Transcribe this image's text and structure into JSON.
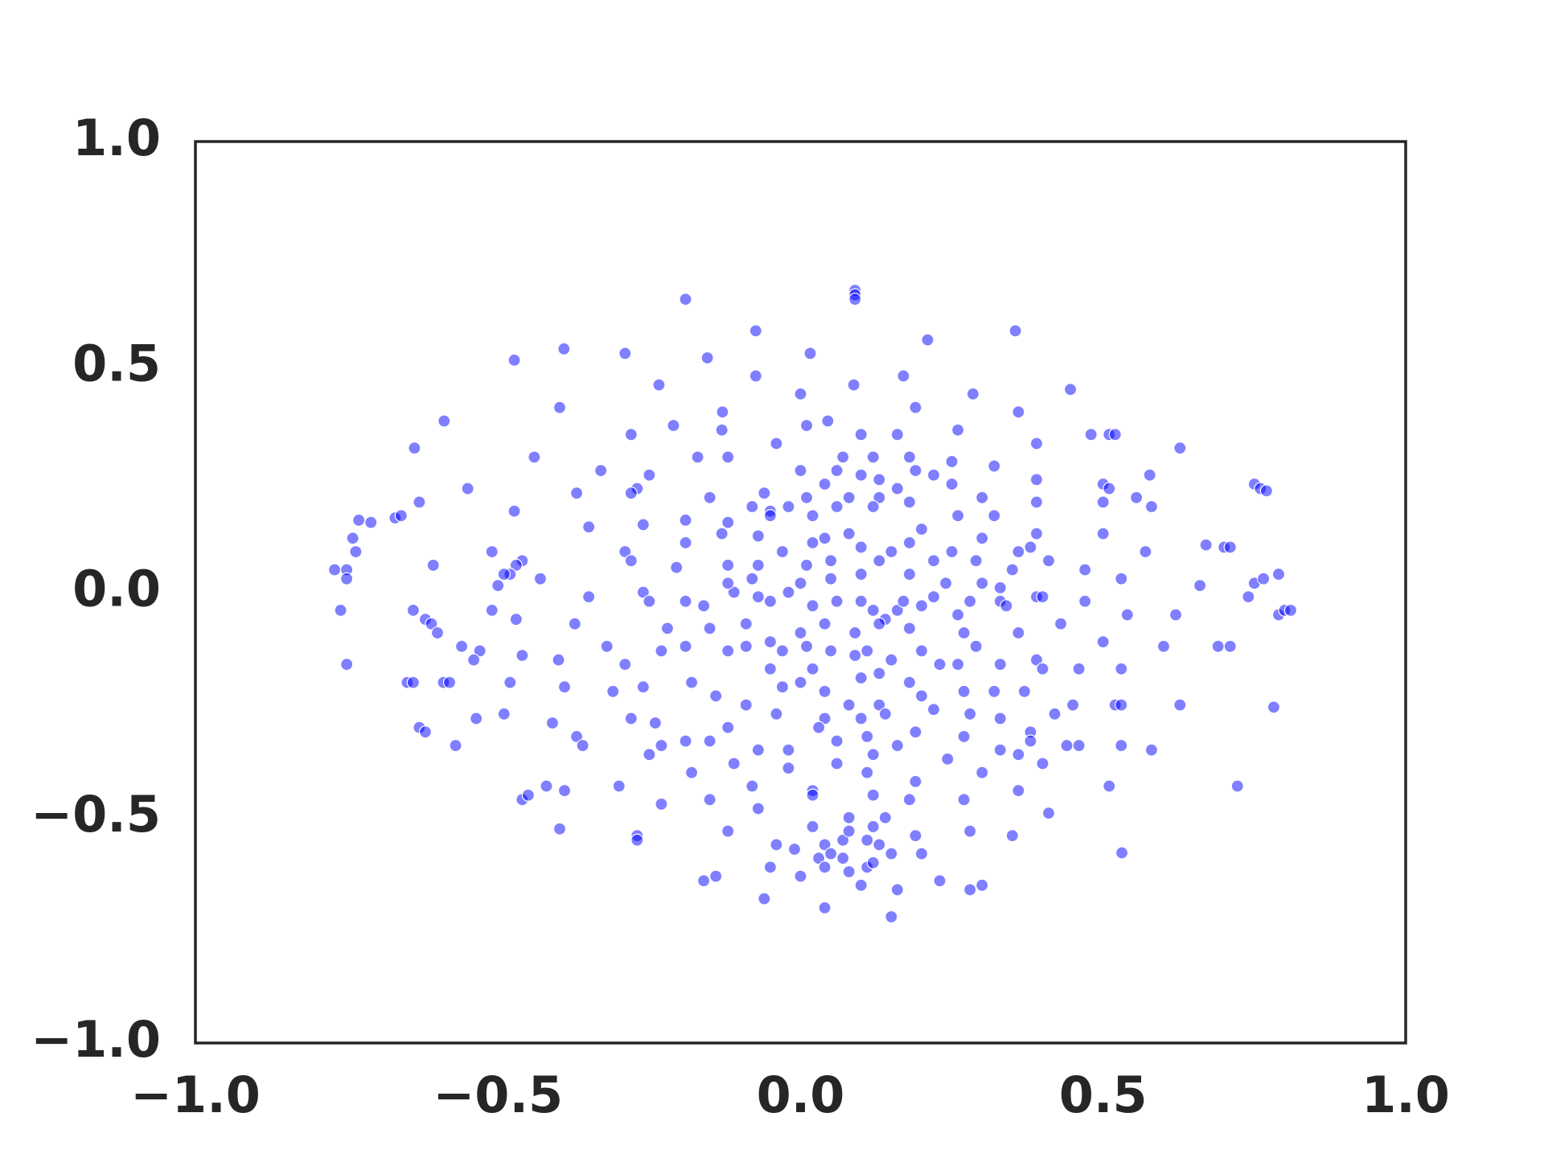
{
  "chart_data": {
    "type": "scatter",
    "x": [
      -0.19,
      0.09,
      0.09,
      0.09,
      0.355,
      0.21,
      0.016,
      -0.391,
      -0.473,
      -0.234,
      0.088,
      -0.398,
      -0.589,
      -0.129,
      -0.638,
      -0.44,
      0.26,
      0.627,
      0.577,
      -0.473,
      -0.607,
      -0.205,
      -0.373,
      -0.536,
      0.243,
      0.627,
      0.782,
      0.722,
      0.531,
      -0.398,
      0.75,
      0.39,
      -0.09,
      0.13,
      -0.074,
      -0.154,
      -0.29,
      -0.074,
      0.17,
      0.446,
      0.285,
      0.0,
      0.19,
      0.36,
      -0.21,
      -0.13,
      -0.28,
      -0.04,
      0.01,
      0.045,
      0.1,
      0.16,
      0.39,
      0.48,
      0.51,
      0.52,
      -0.12,
      -0.17,
      0.07,
      0.12,
      0.18,
      -0.33,
      -0.25,
      -0.27,
      -0.28,
      -0.55,
      -0.37,
      -0.15,
      0.0,
      0.06,
      0.1,
      0.13,
      0.16,
      0.19,
      0.22,
      0.25,
      0.32,
      0.39,
      0.5,
      0.51,
      0.555,
      0.75,
      0.76,
      0.77,
      -0.06,
      0.04,
      0.01,
      0.08,
      0.13,
      0.25,
      0.3,
      0.39,
      0.5,
      -0.73,
      -0.71,
      -0.67,
      -0.66,
      -0.63,
      -0.74,
      -0.35,
      -0.26,
      -0.19,
      -0.12,
      -0.08,
      -0.05,
      -0.05,
      -0.02,
      0.02,
      0.06,
      0.12,
      0.18,
      0.2,
      0.26,
      0.32,
      0.58,
      -0.07,
      0.02,
      0.08,
      0.04,
      0.1,
      0.3,
      0.5,
      0.67,
      0.7,
      0.71,
      -0.735,
      -0.77,
      -0.75,
      -0.75,
      -0.51,
      -0.46,
      -0.47,
      -0.48,
      -0.49,
      -0.43,
      -0.5,
      -0.29,
      -0.28,
      -0.19,
      -0.13,
      -0.12,
      -0.07,
      -0.03,
      0.01,
      0.05,
      0.13,
      0.15,
      0.18,
      0.22,
      0.25,
      0.29,
      0.35,
      0.36,
      0.38,
      0.41,
      0.47,
      0.57,
      -0.08,
      0.0,
      0.05,
      0.1,
      0.18,
      0.24,
      0.3,
      0.33,
      0.53,
      0.66,
      0.765,
      0.79,
      -0.76,
      -0.64,
      -0.62,
      -0.61,
      -0.6,
      -0.56,
      -0.51,
      -0.47,
      -0.35,
      -0.26,
      -0.25,
      -0.22,
      -0.19,
      -0.16,
      -0.15,
      -0.11,
      -0.12,
      -0.07,
      -0.05,
      -0.02,
      0.02,
      0.06,
      0.1,
      0.12,
      0.14,
      0.16,
      0.17,
      0.2,
      0.22,
      0.28,
      0.33,
      0.34,
      0.39,
      0.4,
      0.47,
      0.54,
      0.62,
      0.74,
      0.79,
      0.8,
      0.81,
      0.0,
      0.04,
      0.09,
      0.13,
      0.18,
      0.26,
      0.27,
      0.36,
      0.43,
      0.5,
      -0.75,
      -0.53,
      -0.54,
      -0.46,
      -0.4,
      -0.32,
      -0.29,
      -0.23,
      -0.19,
      -0.12,
      -0.09,
      -0.05,
      -0.03,
      0.01,
      0.05,
      0.09,
      0.11,
      0.15,
      0.2,
      0.23,
      0.26,
      0.29,
      0.33,
      0.39,
      0.4,
      0.46,
      0.53,
      0.6,
      0.69,
      0.71,
      -0.05,
      0.02,
      0.1,
      0.13,
      0.18,
      -0.65,
      -0.64,
      -0.59,
      -0.58,
      -0.48,
      -0.39,
      -0.31,
      -0.26,
      -0.18,
      -0.14,
      -0.03,
      0.0,
      0.04,
      0.08,
      0.14,
      0.2,
      0.22,
      0.27,
      0.32,
      0.37,
      -0.49,
      -0.28,
      -0.24,
      -0.09,
      -0.04,
      0.04,
      0.1,
      0.28,
      0.33,
      0.42,
      0.45,
      0.52,
      0.53,
      -0.63,
      -0.62,
      -0.57,
      -0.41,
      -0.37,
      -0.36,
      -0.23,
      -0.25,
      -0.19,
      -0.15,
      -0.12,
      -0.11,
      -0.07,
      -0.02,
      0.03,
      0.06,
      0.11,
      0.16,
      0.19,
      0.27,
      0.33,
      0.38,
      0.38,
      0.44,
      0.53,
      0.58,
      -0.18,
      -0.08,
      -0.02,
      0.06,
      0.11,
      0.12,
      0.19,
      0.3,
      0.36,
      0.4,
      0.46,
      -0.46,
      -0.45,
      -0.42,
      -0.39,
      -0.3,
      -0.23,
      -0.15,
      -0.07,
      0.02,
      0.02,
      0.12,
      0.18,
      0.27,
      0.36,
      0.51,
      -0.27,
      -0.27,
      -0.12,
      -0.04,
      -0.01,
      0.02,
      0.04,
      0.05,
      0.07,
      0.08,
      0.08,
      0.11,
      0.12,
      0.13,
      0.14,
      0.15,
      0.19,
      0.2,
      0.28,
      0.35,
      0.41,
      -0.16,
      -0.14,
      -0.05,
      0.0,
      0.03,
      0.04,
      0.07,
      0.08,
      0.1,
      0.11,
      0.12,
      0.16,
      0.23,
      0.28,
      0.3,
      -0.06,
      0.04,
      0.15
    ],
    "values": [
      0.65,
      0.67,
      0.66,
      0.65,
      0.58,
      0.56,
      0.53,
      0.54,
      0.515,
      0.46,
      0.46,
      0.41,
      0.38,
      0.4,
      0.32,
      0.3,
      0.36,
      0.32,
      0.26,
      0.18,
      0.06,
      0.055,
      -0.07,
      -0.28,
      -0.37,
      -0.25,
      -0.255,
      -0.43,
      -0.578,
      -0.525,
      0.02,
      0.13,
      -0.07,
      -0.25,
      0.58,
      0.52,
      0.53,
      0.48,
      0.48,
      0.45,
      0.44,
      0.44,
      0.41,
      0.4,
      0.37,
      0.36,
      0.35,
      0.33,
      0.37,
      0.38,
      0.35,
      0.35,
      0.33,
      0.35,
      0.35,
      0.35,
      0.3,
      0.3,
      0.3,
      0.3,
      0.3,
      0.27,
      0.26,
      0.23,
      0.22,
      0.23,
      0.22,
      0.21,
      0.27,
      0.27,
      0.26,
      0.25,
      0.23,
      0.27,
      0.26,
      0.29,
      0.28,
      0.25,
      0.24,
      0.23,
      0.21,
      0.24,
      0.23,
      0.225,
      0.22,
      0.24,
      0.21,
      0.21,
      0.21,
      0.24,
      0.21,
      0.2,
      0.2,
      0.16,
      0.155,
      0.165,
      0.17,
      0.2,
      0.12,
      0.145,
      0.15,
      0.16,
      0.155,
      0.19,
      0.18,
      0.17,
      0.19,
      0.17,
      0.19,
      0.19,
      0.2,
      0.14,
      0.17,
      0.17,
      0.19,
      0.125,
      0.11,
      0.13,
      0.12,
      0.1,
      0.12,
      0.13,
      0.105,
      0.1,
      0.1,
      0.09,
      0.05,
      0.05,
      0.03,
      0.09,
      0.07,
      0.06,
      0.04,
      0.04,
      0.03,
      0.015,
      0.09,
      0.07,
      0.11,
      0.13,
      0.06,
      0.06,
      0.09,
      0.06,
      0.07,
      0.07,
      0.09,
      0.11,
      0.07,
      0.09,
      0.07,
      0.05,
      0.09,
      0.1,
      0.07,
      0.05,
      0.09,
      0.03,
      0.02,
      0.03,
      0.04,
      0.04,
      0.02,
      0.02,
      0.01,
      0.03,
      0.015,
      0.03,
      0.04,
      -0.04,
      -0.04,
      -0.06,
      -0.07,
      -0.09,
      -0.12,
      -0.04,
      -0.06,
      -0.01,
      0.0,
      -0.02,
      -0.08,
      -0.02,
      -0.03,
      -0.08,
      0.0,
      0.02,
      -0.01,
      -0.02,
      0.0,
      -0.03,
      -0.02,
      -0.02,
      -0.04,
      -0.06,
      -0.04,
      -0.02,
      -0.03,
      -0.01,
      -0.02,
      -0.02,
      -0.03,
      -0.01,
      -0.01,
      -0.02,
      -0.05,
      -0.05,
      -0.01,
      -0.05,
      -0.04,
      -0.04,
      -0.09,
      -0.07,
      -0.09,
      -0.07,
      -0.08,
      -0.05,
      -0.09,
      -0.09,
      -0.07,
      -0.11,
      -0.16,
      -0.13,
      -0.15,
      -0.14,
      -0.15,
      -0.12,
      -0.16,
      -0.13,
      -0.12,
      -0.13,
      -0.12,
      -0.11,
      -0.13,
      -0.12,
      -0.13,
      -0.14,
      -0.13,
      -0.15,
      -0.13,
      -0.16,
      -0.16,
      -0.12,
      -0.16,
      -0.15,
      -0.17,
      -0.17,
      -0.17,
      -0.12,
      -0.12,
      -0.12,
      -0.17,
      -0.17,
      -0.19,
      -0.18,
      -0.2,
      -0.2,
      -0.2,
      -0.2,
      -0.2,
      -0.2,
      -0.21,
      -0.22,
      -0.21,
      -0.2,
      -0.23,
      -0.21,
      -0.2,
      -0.22,
      -0.25,
      -0.27,
      -0.23,
      -0.26,
      -0.22,
      -0.22,
      -0.22,
      -0.27,
      -0.28,
      -0.29,
      -0.25,
      -0.27,
      -0.28,
      -0.28,
      -0.27,
      -0.28,
      -0.27,
      -0.25,
      -0.25,
      -0.25,
      -0.3,
      -0.31,
      -0.34,
      -0.29,
      -0.32,
      -0.34,
      -0.34,
      -0.36,
      -0.33,
      -0.33,
      -0.3,
      -0.38,
      -0.35,
      -0.35,
      -0.3,
      -0.33,
      -0.32,
      -0.34,
      -0.31,
      -0.32,
      -0.35,
      -0.31,
      -0.33,
      -0.34,
      -0.34,
      -0.35,
      -0.4,
      -0.43,
      -0.39,
      -0.38,
      -0.4,
      -0.36,
      -0.42,
      -0.4,
      -0.36,
      -0.38,
      -0.34,
      -0.46,
      -0.45,
      -0.43,
      -0.44,
      -0.43,
      -0.47,
      -0.46,
      -0.48,
      -0.44,
      -0.45,
      -0.45,
      -0.46,
      -0.46,
      -0.44,
      -0.43,
      -0.54,
      -0.55,
      -0.53,
      -0.56,
      -0.57,
      -0.52,
      -0.56,
      -0.58,
      -0.55,
      -0.5,
      -0.53,
      -0.55,
      -0.52,
      -0.56,
      -0.5,
      -0.58,
      -0.54,
      -0.58,
      -0.53,
      -0.54,
      -0.49,
      -0.64,
      -0.63,
      -0.61,
      -0.63,
      -0.59,
      -0.61,
      -0.59,
      -0.62,
      -0.65,
      -0.61,
      -0.6,
      -0.66,
      -0.64,
      -0.66,
      -0.65,
      -0.68,
      -0.7,
      -0.72
    ],
    "color": "#0000ff",
    "alpha": 0.5,
    "xlim": [
      -1.0,
      1.0
    ],
    "ylim": [
      -1.0,
      1.0
    ],
    "xticks": [
      {
        "value": -1.0,
        "label": "−1.0"
      },
      {
        "value": -0.5,
        "label": "−0.5"
      },
      {
        "value": 0.0,
        "label": "0.0"
      },
      {
        "value": 0.5,
        "label": "0.5"
      },
      {
        "value": 1.0,
        "label": "1.0"
      }
    ],
    "yticks": [
      {
        "value": -1.0,
        "label": "−1.0"
      },
      {
        "value": -0.5,
        "label": "−0.5"
      },
      {
        "value": 0.0,
        "label": "0.0"
      },
      {
        "value": 0.5,
        "label": "0.5"
      },
      {
        "value": 1.0,
        "label": "1.0"
      }
    ],
    "grid": false
  }
}
